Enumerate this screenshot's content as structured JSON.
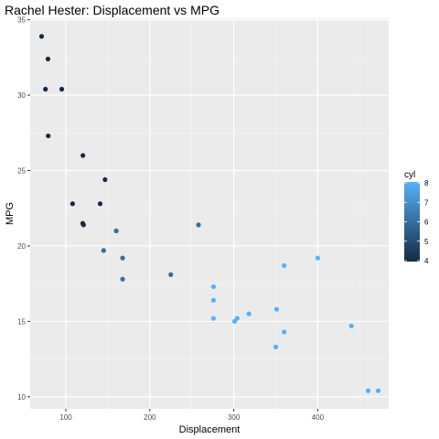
{
  "chart_data": {
    "type": "scatter",
    "title": "Rachel Hester: Displacement vs MPG",
    "xlabel": "Displacement",
    "ylabel": "MPG",
    "xlim": [
      57.5,
      484.5
    ],
    "ylim": [
      9.2,
      35.1
    ],
    "x_ticks": [
      100,
      200,
      300,
      400
    ],
    "y_ticks": [
      10,
      15,
      20,
      25,
      30,
      35
    ],
    "grid": true,
    "legend": {
      "title": "cyl",
      "position": "right",
      "ticks": [
        4,
        5,
        6,
        7,
        8
      ],
      "range": [
        4,
        8
      ],
      "color_low": "#132B43",
      "color_high": "#56B1F7"
    },
    "points": [
      {
        "x": 160,
        "y": 21.0,
        "cyl": 6
      },
      {
        "x": 160,
        "y": 21.0,
        "cyl": 6
      },
      {
        "x": 108,
        "y": 22.8,
        "cyl": 4
      },
      {
        "x": 258,
        "y": 21.4,
        "cyl": 6
      },
      {
        "x": 360,
        "y": 18.7,
        "cyl": 8
      },
      {
        "x": 225,
        "y": 18.1,
        "cyl": 6
      },
      {
        "x": 360,
        "y": 14.3,
        "cyl": 8
      },
      {
        "x": 146.7,
        "y": 24.4,
        "cyl": 4
      },
      {
        "x": 140.8,
        "y": 22.8,
        "cyl": 4
      },
      {
        "x": 167.6,
        "y": 19.2,
        "cyl": 6
      },
      {
        "x": 167.6,
        "y": 17.8,
        "cyl": 6
      },
      {
        "x": 275.8,
        "y": 16.4,
        "cyl": 8
      },
      {
        "x": 275.8,
        "y": 17.3,
        "cyl": 8
      },
      {
        "x": 275.8,
        "y": 15.2,
        "cyl": 8
      },
      {
        "x": 472,
        "y": 10.4,
        "cyl": 8
      },
      {
        "x": 460,
        "y": 10.4,
        "cyl": 8
      },
      {
        "x": 440,
        "y": 14.7,
        "cyl": 8
      },
      {
        "x": 78.7,
        "y": 32.4,
        "cyl": 4
      },
      {
        "x": 75.7,
        "y": 30.4,
        "cyl": 4
      },
      {
        "x": 71.1,
        "y": 33.9,
        "cyl": 4
      },
      {
        "x": 120.1,
        "y": 21.5,
        "cyl": 4
      },
      {
        "x": 318,
        "y": 15.5,
        "cyl": 8
      },
      {
        "x": 304,
        "y": 15.2,
        "cyl": 8
      },
      {
        "x": 350,
        "y": 13.3,
        "cyl": 8
      },
      {
        "x": 400,
        "y": 19.2,
        "cyl": 8
      },
      {
        "x": 79,
        "y": 27.3,
        "cyl": 4
      },
      {
        "x": 120.3,
        "y": 26.0,
        "cyl": 4
      },
      {
        "x": 95.1,
        "y": 30.4,
        "cyl": 4
      },
      {
        "x": 351,
        "y": 15.8,
        "cyl": 8
      },
      {
        "x": 145,
        "y": 19.7,
        "cyl": 6
      },
      {
        "x": 301,
        "y": 15.0,
        "cyl": 8
      },
      {
        "x": 121,
        "y": 21.4,
        "cyl": 4
      }
    ]
  }
}
